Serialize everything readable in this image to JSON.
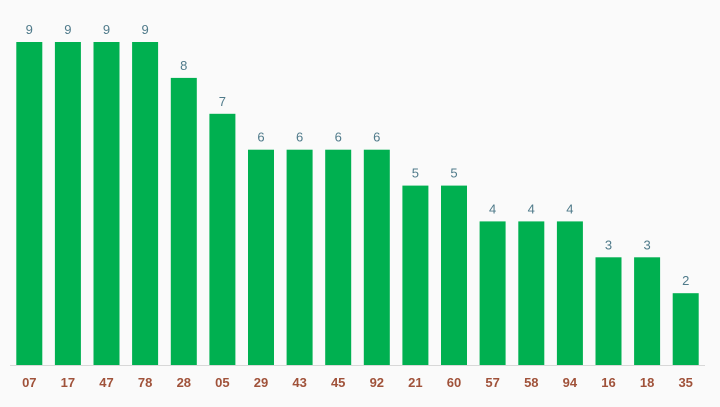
{
  "chart_data": {
    "type": "bar",
    "categories": [
      "07",
      "17",
      "47",
      "78",
      "28",
      "05",
      "29",
      "43",
      "45",
      "92",
      "21",
      "60",
      "57",
      "58",
      "94",
      "16",
      "18",
      "35"
    ],
    "values": [
      9,
      9,
      9,
      9,
      8,
      7,
      6,
      6,
      6,
      6,
      5,
      5,
      4,
      4,
      4,
      3,
      3,
      2
    ],
    "title": "",
    "xlabel": "",
    "ylabel": "",
    "ylim": [
      0,
      9
    ],
    "grid": false,
    "legend": "none",
    "bar_color": "#00b050",
    "value_label_color": "#4f7a8a",
    "category_label_color": "#a0523a",
    "baseline_color": "#d8d8d8"
  }
}
